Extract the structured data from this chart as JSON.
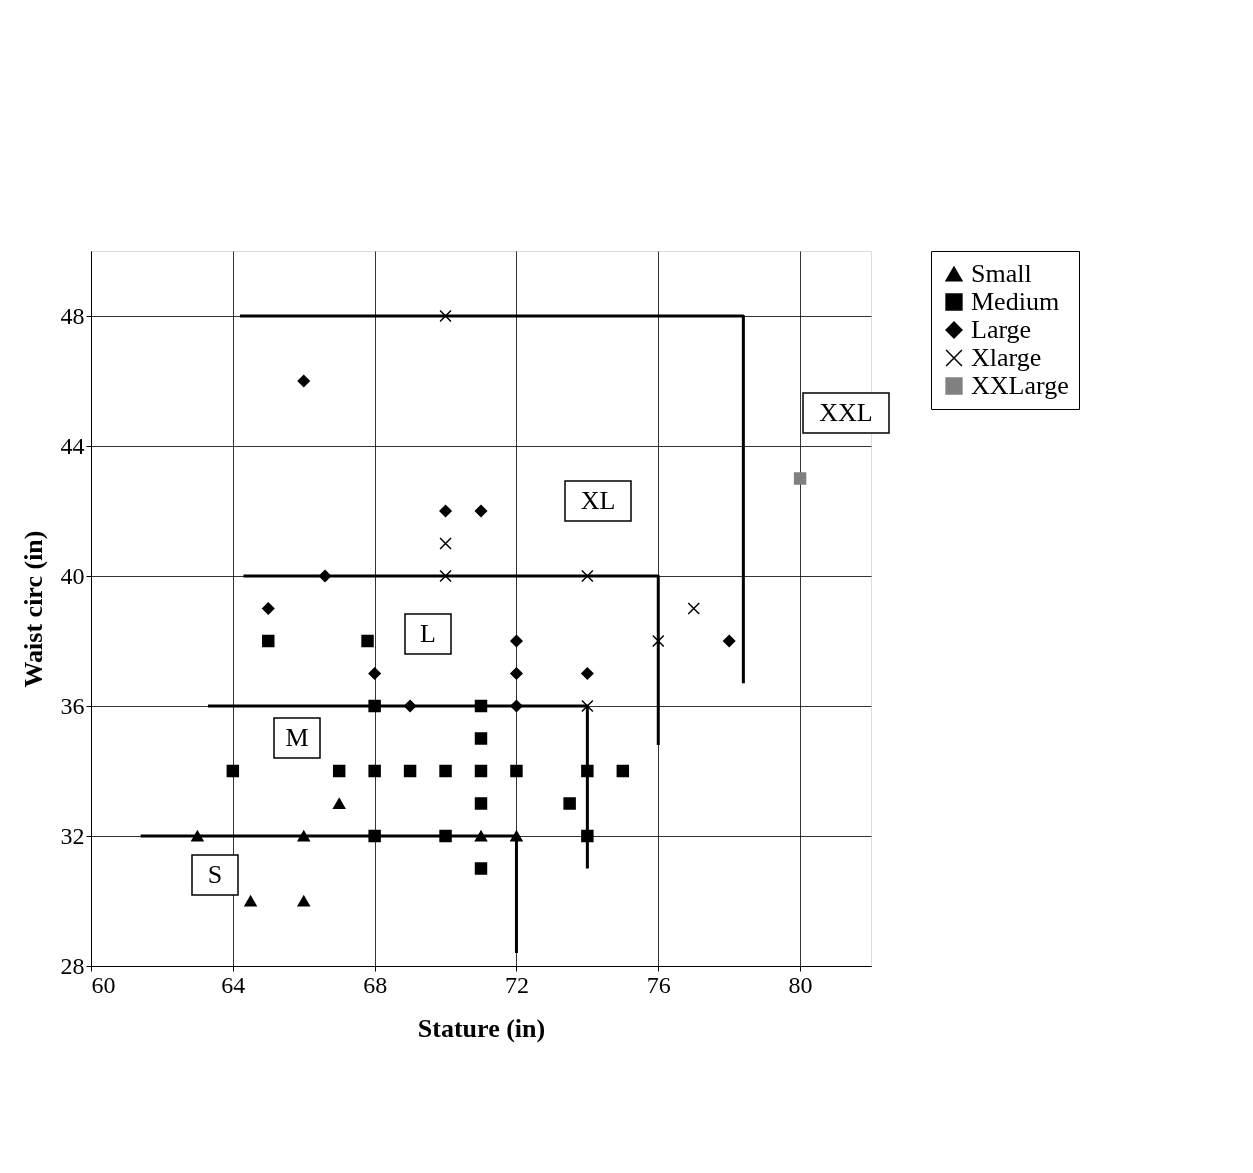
{
  "chart_data": {
    "type": "scatter",
    "xlabel": "Stature (in)",
    "ylabel": "Waist circ (in)",
    "xlim": [
      60,
      82
    ],
    "ylim": [
      28,
      50
    ],
    "xticks": [
      60,
      64,
      68,
      72,
      76,
      80
    ],
    "yticks": [
      28,
      32,
      36,
      40,
      44,
      48
    ],
    "grid": true,
    "legend": "right",
    "series": [
      {
        "name": "Small",
        "color": "#000000",
        "marker": "triangle",
        "x": [
          63,
          64.5,
          66,
          66,
          67,
          71,
          72
        ],
        "values": [
          32,
          30,
          30,
          32,
          33,
          32,
          32
        ]
      },
      {
        "name": "Medium",
        "color": "#000000",
        "marker": "square",
        "x": [
          64,
          65,
          67,
          67.8,
          68,
          68,
          68,
          69,
          70,
          70,
          71,
          71,
          71,
          71,
          71,
          72,
          73.5,
          74,
          74,
          75
        ],
        "values": [
          34,
          38,
          34,
          38,
          34,
          36,
          32,
          34,
          34,
          32,
          36,
          35,
          34,
          33,
          31,
          34,
          33,
          34,
          32,
          34
        ]
      },
      {
        "name": "Large",
        "color": "#000000",
        "marker": "diamond",
        "x": [
          66,
          65,
          66.6,
          68,
          69,
          70,
          71,
          72,
          72,
          72,
          74,
          78
        ],
        "values": [
          46,
          39,
          40,
          37,
          36,
          42,
          42,
          38,
          37,
          36,
          37,
          38
        ]
      },
      {
        "name": "Xlarge",
        "color": "#000000",
        "marker": "cross",
        "x": [
          70,
          70,
          70,
          74,
          74,
          76,
          77
        ],
        "values": [
          48,
          41,
          40,
          40,
          36,
          38,
          39
        ]
      },
      {
        "name": "XXLarge",
        "color": "#808080",
        "marker": "square",
        "x": [
          80
        ],
        "values": [
          43
        ]
      },
      {
        "type": "line",
        "color": "#000000",
        "x": [
          61.4,
          72,
          72
        ],
        "values": [
          32,
          32,
          28.4
        ]
      },
      {
        "type": "line",
        "color": "#000000",
        "x": [
          63.3,
          74,
          74
        ],
        "values": [
          36,
          36,
          31
        ]
      },
      {
        "type": "line",
        "color": "#000000",
        "x": [
          64.3,
          76,
          76
        ],
        "values": [
          40,
          40,
          34.8
        ]
      },
      {
        "type": "line",
        "color": "#000000",
        "x": [
          64.2,
          78.4,
          78.4
        ],
        "values": [
          48,
          48,
          36.7
        ]
      }
    ],
    "annotations": [
      "S",
      "M",
      "L",
      "XL",
      "XXL"
    ]
  }
}
